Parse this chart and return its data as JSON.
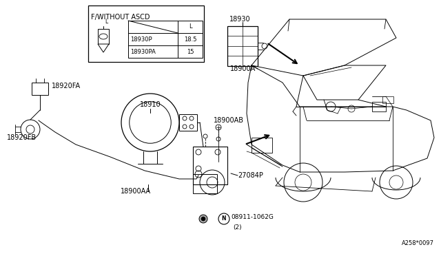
{
  "bg_color": "#ffffff",
  "line_color": "#000000",
  "inset_title": "F/WITHOUT ASCD",
  "inset_rows": [
    [
      "18930P",
      "18.5"
    ],
    [
      "18930PA",
      "15"
    ]
  ],
  "diagram_code": "A258*0097",
  "fig_width": 6.4,
  "fig_height": 3.72,
  "dpi": 100
}
